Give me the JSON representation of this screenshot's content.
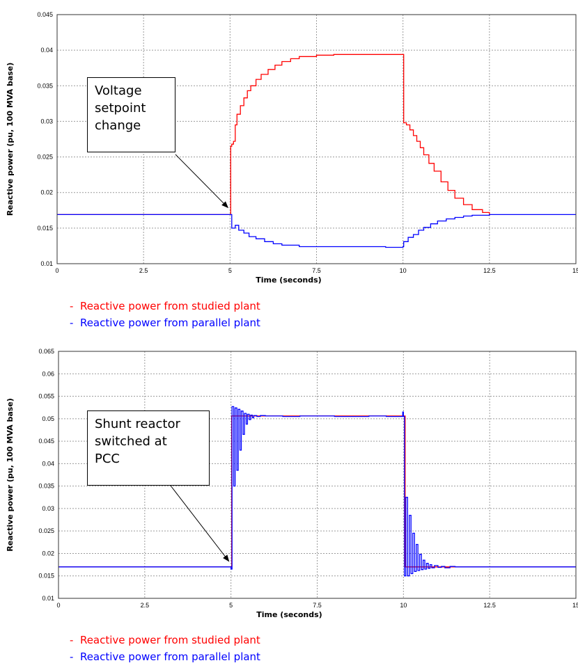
{
  "chart_data": [
    {
      "type": "line",
      "xlabel": "Time (seconds)",
      "ylabel": "Reactive power (pu, 100 MVA base)",
      "xlim": [
        0,
        15
      ],
      "ylim": [
        0.01,
        0.045
      ],
      "x_ticks": [
        "0",
        "2.5",
        "5",
        "7.5",
        "10",
        "12.5",
        "15"
      ],
      "y_ticks": [
        "0.01",
        "0.015",
        "0.02",
        "0.025",
        "0.03",
        "0.035",
        "0.04",
        "0.045"
      ],
      "grid": true,
      "annotation": "Voltage setpoint change",
      "annotation_lines": [
        "Voltage",
        "setpoint",
        "change"
      ],
      "annotation_target": [
        5.0,
        0.0169
      ],
      "legend": [
        {
          "label": "Reactive power from studied plant",
          "color": "#ff0000"
        },
        {
          "label": "Reactive power from parallel plant",
          "color": "#0000ff"
        }
      ],
      "series": [
        {
          "name": "Reactive power from studied plant",
          "color": "#ff0000",
          "x": [
            0,
            5.0,
            5.02,
            5.05,
            5.1,
            5.15,
            5.2,
            5.3,
            5.4,
            5.5,
            5.6,
            5.75,
            5.9,
            6.1,
            6.3,
            6.5,
            6.75,
            7.0,
            7.5,
            8.0,
            9.0,
            10.0,
            10.02,
            10.1,
            10.2,
            10.3,
            10.4,
            10.5,
            10.6,
            10.75,
            10.9,
            11.1,
            11.3,
            11.5,
            11.75,
            12.0,
            12.3,
            12.5
          ],
          "y": [
            0.0169,
            0.0169,
            0.0265,
            0.0268,
            0.0272,
            0.0295,
            0.031,
            0.0322,
            0.0333,
            0.0343,
            0.035,
            0.0359,
            0.0366,
            0.0373,
            0.0379,
            0.0384,
            0.0388,
            0.0391,
            0.0393,
            0.0394,
            0.0394,
            0.0394,
            0.0298,
            0.0295,
            0.0288,
            0.028,
            0.0272,
            0.0263,
            0.0253,
            0.0241,
            0.023,
            0.0215,
            0.0203,
            0.0192,
            0.0183,
            0.0176,
            0.0172,
            0.0169
          ]
        },
        {
          "name": "Reactive power from parallel plant",
          "color": "#0000ff",
          "x": [
            0,
            5.0,
            5.05,
            5.15,
            5.25,
            5.4,
            5.55,
            5.75,
            6.0,
            6.25,
            6.5,
            7.0,
            8.0,
            9.0,
            9.5,
            10.0,
            10.02,
            10.15,
            10.3,
            10.45,
            10.6,
            10.8,
            11.0,
            11.25,
            11.5,
            11.75,
            12.0,
            12.5,
            13.0,
            14.0,
            15.0
          ],
          "y": [
            0.0169,
            0.0169,
            0.015,
            0.0154,
            0.0147,
            0.0143,
            0.0138,
            0.0135,
            0.0131,
            0.0128,
            0.0126,
            0.0124,
            0.0124,
            0.0124,
            0.0123,
            0.0124,
            0.0131,
            0.0137,
            0.0141,
            0.0147,
            0.0151,
            0.0156,
            0.016,
            0.0163,
            0.0165,
            0.0167,
            0.0168,
            0.0169,
            0.0169,
            0.0169,
            0.0169
          ]
        }
      ]
    },
    {
      "type": "line",
      "xlabel": "Time (seconds)",
      "ylabel": "Reactive power (pu, 100 MVA base)",
      "xlim": [
        0,
        15
      ],
      "ylim": [
        0.01,
        0.065
      ],
      "x_ticks": [
        "0",
        "2.5",
        "5",
        "7.5",
        "10",
        "12.5",
        "15"
      ],
      "y_ticks": [
        "0.01",
        "0.015",
        "0.02",
        "0.025",
        "0.03",
        "0.035",
        "0.04",
        "0.045",
        "0.05",
        "0.055",
        "0.06",
        "0.065"
      ],
      "grid": true,
      "annotation": "Shunt reactor switched at PCC",
      "annotation_lines": [
        "Shunt reactor",
        "switched at",
        "PCC"
      ],
      "annotation_target": [
        5.0,
        0.0167
      ],
      "legend": [
        {
          "label": "Reactive power from studied plant",
          "color": "#ff0000"
        },
        {
          "label": "Reactive power from parallel plant",
          "color": "#0000ff"
        }
      ],
      "series": [
        {
          "name": "Reactive power from studied plant",
          "color": "#ff0000",
          "x": [
            0,
            5.0,
            5.02,
            10.0,
            10.05,
            15.0
          ],
          "y": [
            0.017,
            0.017,
            0.0506,
            0.0506,
            0.017,
            0.017
          ]
        },
        {
          "name": "Reactive power from parallel plant",
          "color": "#0000ff",
          "x": [
            0,
            4.98,
            5.0,
            5.03,
            5.08,
            5.12,
            5.17,
            5.21,
            5.26,
            5.3,
            5.35,
            5.39,
            5.44,
            5.48,
            5.53,
            5.57,
            5.62,
            5.66,
            5.75,
            5.85,
            6.0,
            6.5,
            7.0,
            8.0,
            9.0,
            9.5,
            9.98,
            10.0,
            10.03,
            10.07,
            10.12,
            10.17,
            10.22,
            10.27,
            10.32,
            10.37,
            10.42,
            10.47,
            10.52,
            10.57,
            10.62,
            10.67,
            10.72,
            10.77,
            10.82,
            10.9,
            11.0,
            11.1,
            11.2,
            11.35,
            11.5,
            12.0,
            13.0,
            14.0,
            15.0
          ],
          "y": [
            0.017,
            0.017,
            0.0165,
            0.0527,
            0.035,
            0.0524,
            0.0385,
            0.0521,
            0.043,
            0.0517,
            0.0465,
            0.0512,
            0.0488,
            0.051,
            0.0498,
            0.0508,
            0.0502,
            0.0507,
            0.0505,
            0.0507,
            0.0506,
            0.0505,
            0.0506,
            0.0505,
            0.0506,
            0.0505,
            0.0515,
            0.0505,
            0.015,
            0.0325,
            0.015,
            0.0285,
            0.0155,
            0.0245,
            0.016,
            0.022,
            0.0162,
            0.0198,
            0.0164,
            0.0185,
            0.0165,
            0.0178,
            0.0167,
            0.0175,
            0.0168,
            0.0173,
            0.0169,
            0.0171,
            0.0168,
            0.0171,
            0.017,
            0.017,
            0.017,
            0.017,
            0.017
          ]
        }
      ]
    }
  ]
}
